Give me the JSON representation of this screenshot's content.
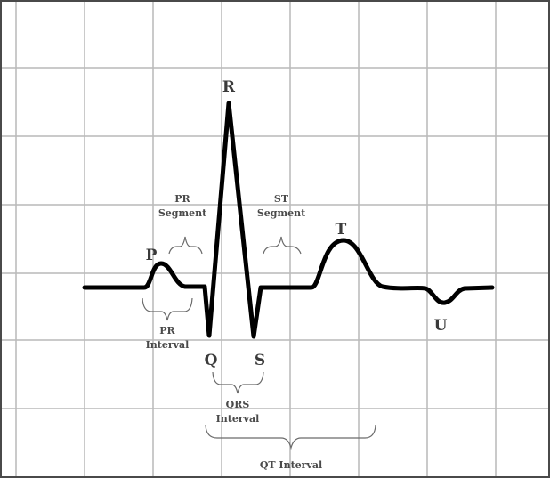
{
  "waves": {
    "p": "P",
    "q": "Q",
    "r": "R",
    "s": "S",
    "t": "T",
    "u": "U"
  },
  "annotations": {
    "pr_segment": [
      "PR",
      "Segment"
    ],
    "st_segment": [
      "ST",
      "Segment"
    ],
    "pr_interval": [
      "PR",
      "Interval"
    ],
    "qrs_interval": [
      "QRS",
      "Interval"
    ],
    "qt_interval": [
      "QT Interval"
    ]
  },
  "colors": {
    "trace": "#000000",
    "grid": "#b9b9b9",
    "frame": "#4a4a4a",
    "background": "#ffffff"
  }
}
